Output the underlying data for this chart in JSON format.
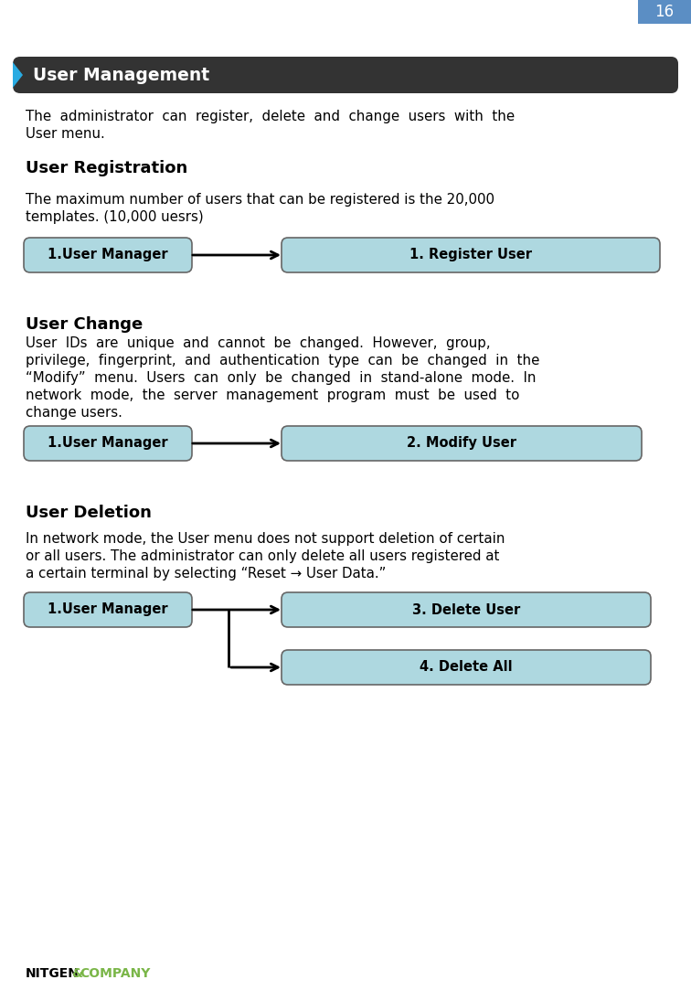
{
  "page_number": "16",
  "page_num_bg": "#5b8ec4",
  "page_num_color": "#ffffff",
  "header_bg": "#333333",
  "header_text": "User Management",
  "header_accent": "#29abe2",
  "body_text_color": "#000000",
  "box_bg": "#aed8e0",
  "box_border": "#666666",
  "arrow_color": "#000000",
  "box1_label": "1.User Manager",
  "box2_label": "1. Register User",
  "box3_label": "1.User Manager",
  "box4_label": "2. Modify User",
  "box5_label": "1.User Manager",
  "box6_label": "3. Delete User",
  "box7_label": "4. Delete All",
  "footer_text_black": "NITGEN",
  "footer_amp": "&",
  "footer_text_green": "COMPANY",
  "footer_green": "#7ab648"
}
